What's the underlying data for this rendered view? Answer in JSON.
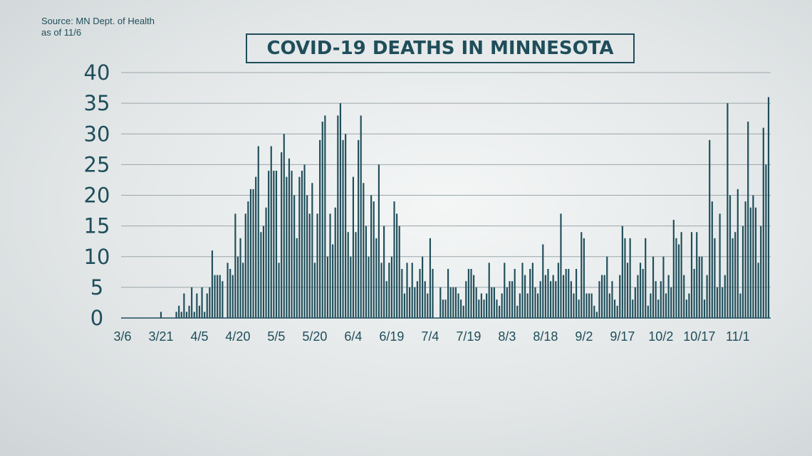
{
  "source": {
    "line1": "Source: MN Dept. of Health",
    "line2": "as of 11/6"
  },
  "chart_data": {
    "type": "bar",
    "title": "COVID-19 DEATHS IN MINNESOTA",
    "xlabel": "",
    "ylabel": "",
    "ylim": [
      0,
      40
    ],
    "yticks": [
      0,
      5,
      10,
      15,
      20,
      25,
      30,
      35,
      40
    ],
    "xtick_labels": [
      "3/6",
      "3/21",
      "4/5",
      "4/20",
      "5/5",
      "5/20",
      "6/4",
      "6/19",
      "7/4",
      "7/19",
      "8/3",
      "8/18",
      "9/2",
      "9/17",
      "10/2",
      "10/17",
      "11/1"
    ],
    "grid": true,
    "bar_color": "#1f4e5a",
    "start_date": "3/6",
    "values": [
      0,
      0,
      0,
      0,
      0,
      0,
      0,
      0,
      0,
      0,
      0,
      0,
      0,
      0,
      0,
      1,
      0,
      0,
      0,
      0,
      0,
      1,
      2,
      1,
      4,
      1,
      2,
      5,
      1,
      4,
      2,
      5,
      1,
      4,
      5,
      11,
      7,
      7,
      7,
      6,
      0,
      9,
      8,
      7,
      17,
      10,
      13,
      9,
      17,
      19,
      21,
      21,
      23,
      28,
      14,
      15,
      18,
      24,
      28,
      24,
      24,
      9,
      27,
      30,
      23,
      26,
      24,
      20,
      13,
      23,
      24,
      25,
      20,
      17,
      22,
      9,
      17,
      29,
      32,
      33,
      10,
      17,
      12,
      18,
      33,
      35,
      29,
      30,
      14,
      10,
      23,
      14,
      29,
      33,
      22,
      15,
      10,
      20,
      19,
      13,
      25,
      9,
      15,
      6,
      9,
      10,
      19,
      17,
      15,
      8,
      4,
      9,
      5,
      9,
      5,
      6,
      8,
      10,
      6,
      4,
      13,
      8,
      0,
      0,
      5,
      3,
      3,
      8,
      5,
      5,
      5,
      4,
      3,
      2,
      6,
      8,
      8,
      7,
      5,
      3,
      4,
      3,
      4,
      9,
      5,
      5,
      3,
      2,
      4,
      9,
      5,
      6,
      6,
      8,
      2,
      4,
      9,
      7,
      4,
      8,
      9,
      5,
      4,
      6,
      12,
      7,
      8,
      6,
      7,
      6,
      9,
      17,
      7,
      8,
      8,
      6,
      4,
      8,
      3,
      14,
      13,
      4,
      4,
      4,
      2,
      1,
      6,
      7,
      7,
      10,
      4,
      6,
      3,
      2,
      7,
      15,
      13,
      9,
      13,
      3,
      5,
      7,
      9,
      8,
      13,
      2,
      4,
      10,
      6,
      3,
      6,
      10,
      4,
      7,
      5,
      16,
      13,
      12,
      14,
      7,
      3,
      4,
      14,
      8,
      14,
      10,
      10,
      3,
      7,
      29,
      19,
      13,
      5,
      17,
      5,
      7,
      35,
      20,
      13,
      14,
      21,
      4,
      15,
      19,
      32,
      18,
      20,
      18,
      9,
      15,
      31,
      25,
      36
    ]
  }
}
